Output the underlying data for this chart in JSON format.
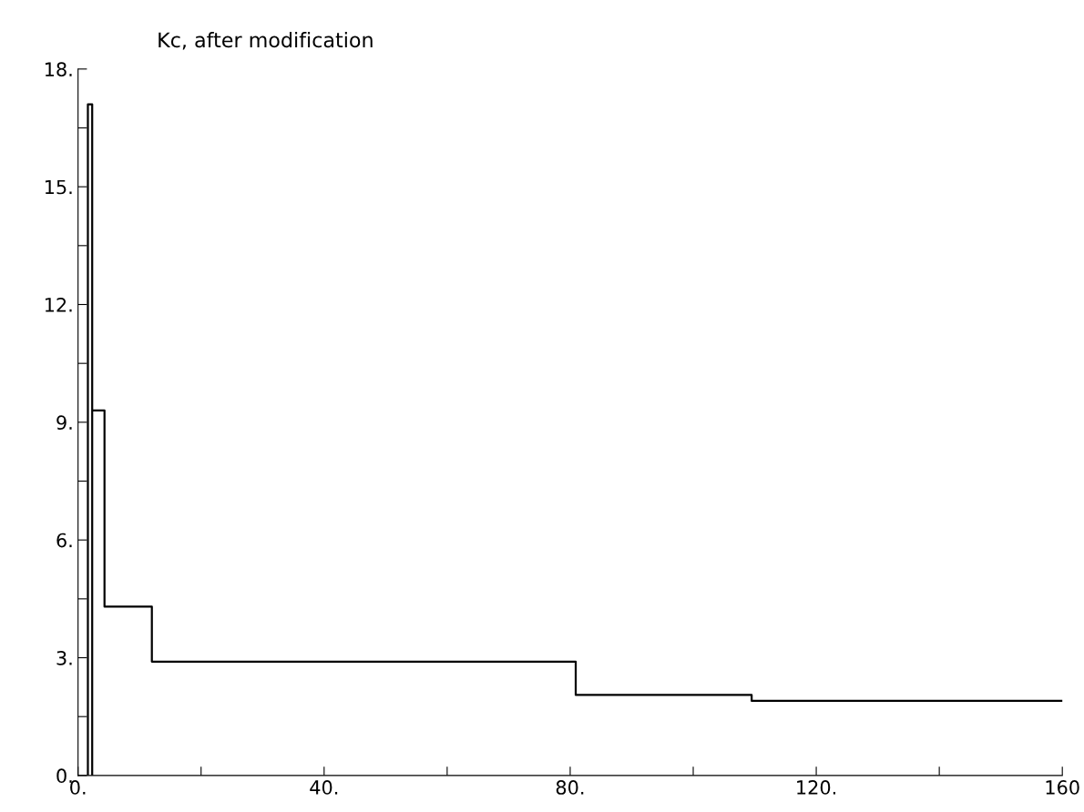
{
  "chart_data": {
    "type": "line",
    "title": "Kc, after modification",
    "x": [
      1.6,
      1.6,
      2.3,
      2.3,
      2.3,
      4.3,
      4.3,
      12.0,
      12.0,
      80.9,
      80.9,
      109.5,
      109.5,
      160
    ],
    "series": [
      {
        "color": "#000000",
        "values": [
          0,
          17.1,
          17.1,
          0,
          9.3,
          9.3,
          4.3,
          4.3,
          2.9,
          2.9,
          2.05,
          2.05,
          1.9,
          1.9
        ]
      }
    ],
    "xlim": [
      0,
      160
    ],
    "ylim": [
      0,
      18
    ],
    "xticks": [
      {
        "value": 0,
        "label": "0."
      },
      {
        "value": 20,
        "label": null
      },
      {
        "value": 40,
        "label": "40."
      },
      {
        "value": 60,
        "label": null
      },
      {
        "value": 80,
        "label": "80."
      },
      {
        "value": 100,
        "label": null
      },
      {
        "value": 120,
        "label": "120."
      },
      {
        "value": 140,
        "label": null
      },
      {
        "value": 160,
        "label": "160"
      }
    ],
    "yticks": [
      {
        "value": 0,
        "label": "0."
      },
      {
        "value": 1.5,
        "label": null
      },
      {
        "value": 3,
        "label": "3."
      },
      {
        "value": 4.5,
        "label": null
      },
      {
        "value": 6,
        "label": "6."
      },
      {
        "value": 7.5,
        "label": null
      },
      {
        "value": 9,
        "label": "9."
      },
      {
        "value": 10.5,
        "label": null
      },
      {
        "value": 12,
        "label": "12."
      },
      {
        "value": 13.5,
        "label": null
      },
      {
        "value": 15,
        "label": "15."
      },
      {
        "value": 16.5,
        "label": null
      },
      {
        "value": 18,
        "label": "18."
      }
    ],
    "grid": false,
    "legend": false,
    "marker": "none",
    "line_style": "solid"
  }
}
